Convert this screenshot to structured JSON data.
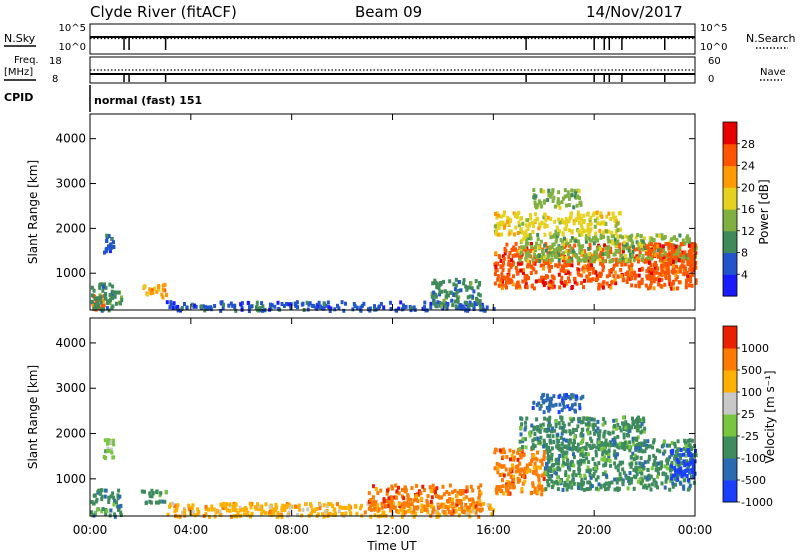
{
  "header": {
    "station": "Clyde River (fitACF)",
    "beam": "Beam 09",
    "date": "14/Nov/2017"
  },
  "status_panel": {
    "nsky_label": "N.Sky",
    "nsky_ticks": [
      "10^5",
      "10^0"
    ],
    "nsearch_label": "N.Search",
    "nsearch_ticks": [
      "10^5",
      "10^0"
    ],
    "freq_label_1": "Freq.",
    "freq_label_2": "[MHz]",
    "freq_ticks": [
      "18",
      "8"
    ],
    "nave_label": "Nave",
    "nave_ticks": [
      "60",
      "0"
    ],
    "cpid_label": "CPID",
    "cpid_value": "normal (fast) 151",
    "drop_hours": [
      1.35,
      1.55,
      3.0,
      17.3,
      20.0,
      20.4,
      20.6,
      21.1,
      22.8
    ]
  },
  "chart_data": [
    {
      "type": "heatmap",
      "name": "power",
      "ylabel": "Slant Range [km]",
      "y_ticks": [
        1000,
        2000,
        3000,
        4000
      ],
      "ylim": [
        180,
        4550
      ],
      "xlim": [
        0,
        24
      ],
      "colorbar_label": "Power [dB]",
      "colorbar_ticks": [
        "4",
        "8",
        "12",
        "16",
        "20",
        "24",
        "28"
      ],
      "colors": [
        "#1a1aff",
        "#2255cc",
        "#3f8a5a",
        "#7fb040",
        "#e6d21e",
        "#ff9a00",
        "#ff5500",
        "#e60000"
      ],
      "regions": [
        {
          "x": [
            0.0,
            0.5
          ],
          "y": [
            200,
            600
          ],
          "level": 6
        },
        {
          "x": [
            0.0,
            1.2
          ],
          "y": [
            200,
            800
          ],
          "level": 2
        },
        {
          "x": [
            0.5,
            0.9
          ],
          "y": [
            1500,
            1900
          ],
          "level": 1
        },
        {
          "x": [
            2.0,
            3.0
          ],
          "y": [
            500,
            800
          ],
          "level": 5
        },
        {
          "x": [
            3.0,
            16.0
          ],
          "y": [
            200,
            400
          ],
          "level": 1
        },
        {
          "x": [
            13.5,
            15.5
          ],
          "y": [
            300,
            900
          ],
          "level": 2
        },
        {
          "x": [
            16.0,
            24.0
          ],
          "y": [
            700,
            1700
          ],
          "level": 6
        },
        {
          "x": [
            17.0,
            24.0
          ],
          "y": [
            1300,
            1900
          ],
          "level": 3
        },
        {
          "x": [
            17.5,
            19.5
          ],
          "y": [
            2500,
            2900
          ],
          "level": 3
        },
        {
          "x": [
            16.0,
            21.0
          ],
          "y": [
            1900,
            2400
          ],
          "level": 4
        },
        {
          "x": [
            22.0,
            24.0
          ],
          "y": [
            1000,
            1700
          ],
          "level": 6
        }
      ]
    },
    {
      "type": "heatmap",
      "name": "velocity",
      "ylabel": "Slant Range [km]",
      "y_ticks": [
        1000,
        2000,
        3000,
        4000
      ],
      "ylim": [
        180,
        4550
      ],
      "xlim": [
        0,
        24
      ],
      "colorbar_label": "Velocity [m s⁻¹]",
      "colorbar_ticks": [
        "1000",
        "500",
        "100",
        "25",
        "-25",
        "-100",
        "-500",
        "-1000"
      ],
      "colors": [
        "#1a3fff",
        "#2b6ab0",
        "#3e8c5e",
        "#77c63e",
        "#c8c8c8",
        "#ffb000",
        "#ff7a00",
        "#e82000"
      ],
      "regions": [
        {
          "x": [
            0.0,
            1.2
          ],
          "y": [
            200,
            800
          ],
          "level": 2
        },
        {
          "x": [
            0.5,
            0.9
          ],
          "y": [
            1500,
            1900
          ],
          "level": 3
        },
        {
          "x": [
            2.0,
            3.0
          ],
          "y": [
            500,
            800
          ],
          "level": 2
        },
        {
          "x": [
            3.0,
            16.0
          ],
          "y": [
            200,
            500
          ],
          "level": 5
        },
        {
          "x": [
            11.0,
            15.5
          ],
          "y": [
            300,
            900
          ],
          "level": 6
        },
        {
          "x": [
            16.0,
            18.0
          ],
          "y": [
            700,
            1700
          ],
          "level": 6
        },
        {
          "x": [
            18.0,
            24.0
          ],
          "y": [
            800,
            1900
          ],
          "level": 2
        },
        {
          "x": [
            17.0,
            22.0
          ],
          "y": [
            1700,
            2400
          ],
          "level": 2
        },
        {
          "x": [
            17.5,
            19.5
          ],
          "y": [
            2500,
            2900
          ],
          "level": 1
        },
        {
          "x": [
            23.0,
            24.0
          ],
          "y": [
            1000,
            1700
          ],
          "level": 0
        }
      ]
    }
  ],
  "x_axis": {
    "xlabel": "Time UT",
    "ticks": [
      "00:00",
      "04:00",
      "08:00",
      "12:00",
      "16:00",
      "20:00",
      "00:00"
    ]
  }
}
